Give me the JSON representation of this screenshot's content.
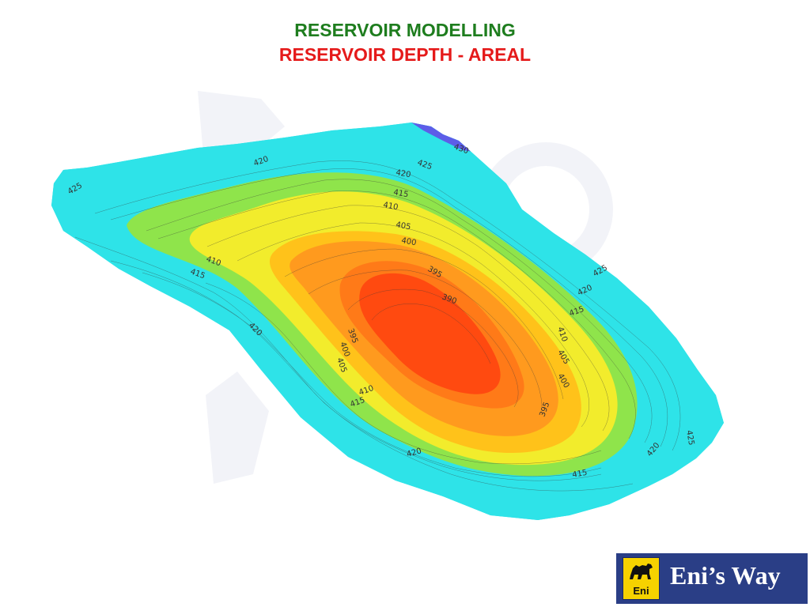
{
  "header": {
    "title": "RESERVOIR MODELLING",
    "subtitle": "RESERVOIR DEPTH - AREAL",
    "title_color": "#1e7d1e",
    "subtitle_color": "#e51a1a"
  },
  "map": {
    "depth_bands": [
      {
        "max_depth": 430,
        "color": "#5d5de8"
      },
      {
        "max_depth": 425,
        "color": "#2ee3e8"
      },
      {
        "max_depth": 415,
        "color": "#8fe44b"
      },
      {
        "max_depth": 410,
        "color": "#f2ec2c"
      },
      {
        "max_depth": 405,
        "color": "#ffc21a"
      },
      {
        "max_depth": 400,
        "color": "#ff9a1e"
      },
      {
        "max_depth": 395,
        "color": "#ff7a18"
      },
      {
        "max_depth": 390,
        "color": "#ff4a10"
      }
    ],
    "contour_labels": [
      {
        "text": "430"
      },
      {
        "text": "425"
      },
      {
        "text": "425"
      },
      {
        "text": "420"
      },
      {
        "text": "420"
      },
      {
        "text": "415"
      },
      {
        "text": "410"
      },
      {
        "text": "405"
      },
      {
        "text": "400"
      },
      {
        "text": "395"
      },
      {
        "text": "390"
      },
      {
        "text": "410"
      },
      {
        "text": "415"
      },
      {
        "text": "420"
      },
      {
        "text": "395"
      },
      {
        "text": "400"
      },
      {
        "text": "405"
      },
      {
        "text": "410"
      },
      {
        "text": "415"
      },
      {
        "text": "420"
      },
      {
        "text": "425"
      },
      {
        "text": "420"
      },
      {
        "text": "415"
      },
      {
        "text": "410"
      },
      {
        "text": "405"
      },
      {
        "text": "400"
      },
      {
        "text": "395"
      },
      {
        "text": "425"
      },
      {
        "text": "420"
      },
      {
        "text": "415"
      }
    ]
  },
  "logo": {
    "text": "Eni’s Way",
    "badge_text": "Eni",
    "badge_color": "#f6d200",
    "bar_color": "#2a3e86"
  }
}
